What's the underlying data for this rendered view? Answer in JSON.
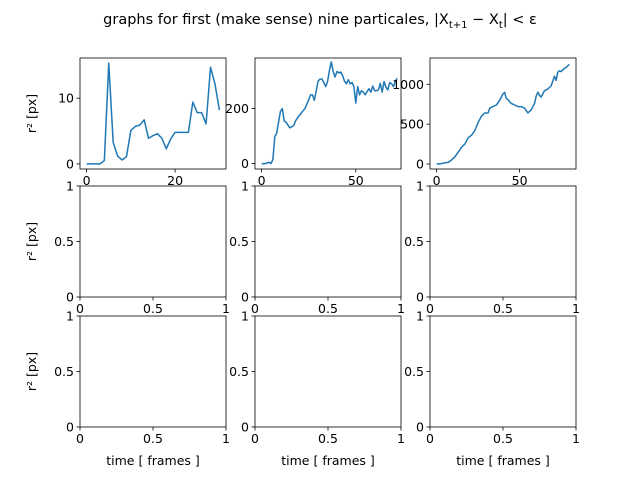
{
  "suptitle": {
    "prefix": "graphs for first (make sense) nine particales, |X",
    "sub1": "t+1",
    "mid": " − X",
    "sub2": "t",
    "suffix": "| < ε"
  },
  "ylabel": "r² [px]",
  "xlabel": "time [ frames ]",
  "line_color": "#1f77b4",
  "chart_data": [
    {
      "type": "line",
      "row": 0,
      "col": 0,
      "xlim": [
        -1.5,
        31.5
      ],
      "ylim": [
        -0.77,
        16.1
      ],
      "xticks": [
        0,
        20
      ],
      "yticks": [
        0,
        10
      ],
      "x": [
        0,
        1,
        2,
        3,
        4,
        5,
        6,
        7,
        8,
        9,
        10,
        11,
        12,
        13,
        14,
        15,
        16,
        17,
        18,
        19,
        20,
        21,
        22,
        23,
        24,
        25,
        26,
        27,
        28,
        29,
        30
      ],
      "values": [
        0,
        0,
        0,
        0,
        0.5,
        15.3,
        3.3,
        1.2,
        0.6,
        1.1,
        5.1,
        5.7,
        5.9,
        6.7,
        3.9,
        4.3,
        4.6,
        3.9,
        2.3,
        3.8,
        4.8,
        4.8,
        4.8,
        4.8,
        9.4,
        7.8,
        7.8,
        6.1,
        14.7,
        12.2,
        8.2
      ]
    },
    {
      "type": "line",
      "row": 0,
      "col": 1,
      "xlim": [
        -3.5,
        74
      ],
      "ylim": [
        -19.6,
        384
      ],
      "xticks": [
        0,
        50
      ],
      "yticks": [
        0,
        200
      ],
      "x": [
        0,
        2,
        4,
        5,
        6,
        7,
        8,
        10,
        11,
        12,
        13,
        15,
        17,
        18,
        20,
        22,
        23,
        25,
        26,
        27,
        28,
        30,
        31,
        32,
        33,
        34,
        35,
        36,
        37,
        38,
        39,
        40,
        41,
        42,
        43,
        44,
        45,
        46,
        47,
        48,
        49,
        50,
        51,
        52,
        53,
        54,
        55,
        56,
        57,
        58,
        59,
        60,
        61,
        62,
        63,
        64,
        65,
        66,
        67,
        68,
        69,
        70,
        71,
        72
      ],
      "values": [
        0,
        0,
        5,
        0,
        15,
        98,
        110,
        190,
        200,
        155,
        150,
        130,
        138,
        155,
        175,
        192,
        200,
        232,
        250,
        250,
        230,
        300,
        307,
        308,
        295,
        280,
        298,
        338,
        370,
        335,
        315,
        335,
        330,
        333,
        320,
        300,
        290,
        305,
        290,
        295,
        280,
        220,
        280,
        250,
        265,
        260,
        250,
        262,
        272,
        260,
        282,
        265,
        265,
        268,
        292,
        260,
        298,
        278,
        268,
        295,
        290,
        280,
        300,
        310
      ]
    },
    {
      "type": "line",
      "row": 0,
      "col": 2,
      "xlim": [
        -4,
        84
      ],
      "ylim": [
        -63,
        1330
      ],
      "xticks": [
        0,
        50
      ],
      "yticks": [
        0,
        500,
        1000
      ],
      "x": [
        0,
        3,
        5,
        7,
        9,
        11,
        13,
        15,
        17,
        19,
        21,
        23,
        25,
        27,
        29,
        31,
        32,
        34,
        36,
        38,
        40,
        41,
        42,
        43,
        44,
        45,
        46,
        47,
        49,
        51,
        53,
        55,
        57,
        59,
        60,
        61,
        62,
        63,
        64,
        65,
        67,
        69,
        71,
        72,
        73,
        74,
        75,
        76,
        77,
        78,
        79,
        80
      ],
      "values": [
        0,
        5,
        15,
        20,
        50,
        90,
        150,
        210,
        250,
        330,
        360,
        420,
        520,
        600,
        640,
        640,
        700,
        720,
        740,
        800,
        880,
        900,
        820,
        810,
        780,
        760,
        750,
        740,
        720,
        720,
        700,
        640,
        680,
        760,
        850,
        900,
        860,
        840,
        880,
        920,
        940,
        980,
        1100,
        1050,
        1150,
        1170,
        1160,
        1180,
        1200,
        1210,
        1230,
        1250
      ]
    },
    {
      "type": "line",
      "row": 1,
      "col": 0,
      "xlim": [
        0,
        1
      ],
      "ylim": [
        0,
        1
      ],
      "xticks": [
        0,
        0.5,
        1
      ],
      "yticks": [
        0,
        0.5,
        1
      ],
      "x": [],
      "values": []
    },
    {
      "type": "line",
      "row": 1,
      "col": 1,
      "xlim": [
        0,
        1
      ],
      "ylim": [
        0,
        1
      ],
      "xticks": [
        0,
        0.5,
        1
      ],
      "yticks": [
        0,
        0.5,
        1
      ],
      "x": [],
      "values": []
    },
    {
      "type": "line",
      "row": 1,
      "col": 2,
      "xlim": [
        0,
        1
      ],
      "ylim": [
        0,
        1
      ],
      "xticks": [
        0,
        0.5,
        1
      ],
      "yticks": [
        0,
        0.5,
        1
      ],
      "x": [],
      "values": []
    },
    {
      "type": "line",
      "row": 2,
      "col": 0,
      "xlim": [
        0,
        1
      ],
      "ylim": [
        0,
        1
      ],
      "xticks": [
        0,
        0.5,
        1
      ],
      "yticks": [
        0,
        0.5,
        1
      ],
      "x": [],
      "values": []
    },
    {
      "type": "line",
      "row": 2,
      "col": 1,
      "xlim": [
        0,
        1
      ],
      "ylim": [
        0,
        1
      ],
      "xticks": [
        0,
        0.5,
        1
      ],
      "yticks": [
        0,
        0.5,
        1
      ],
      "x": [],
      "values": []
    },
    {
      "type": "line",
      "row": 2,
      "col": 2,
      "xlim": [
        0,
        1
      ],
      "ylim": [
        0,
        1
      ],
      "xticks": [
        0,
        0.5,
        1
      ],
      "yticks": [
        0,
        0.5,
        1
      ],
      "x": [],
      "values": []
    }
  ]
}
